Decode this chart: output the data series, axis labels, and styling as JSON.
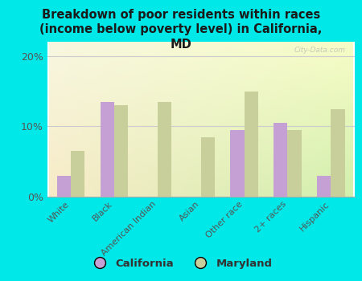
{
  "title": "Breakdown of poor residents within races\n(income below poverty level) in California,\nMD",
  "categories": [
    "White",
    "Black",
    "American Indian",
    "Asian",
    "Other race",
    "2+ races",
    "Hispanic"
  ],
  "california": [
    3.0,
    13.5,
    0.0,
    0.0,
    9.5,
    10.5,
    3.0
  ],
  "maryland": [
    6.5,
    13.0,
    13.5,
    8.5,
    15.0,
    9.5,
    12.5
  ],
  "california_color": "#c4a0d4",
  "maryland_color": "#c8cf9a",
  "background_color": "#00e8e8",
  "title_color": "#1a1a1a",
  "yticks": [
    0,
    10,
    20
  ],
  "ylim": [
    0,
    22
  ],
  "bar_width": 0.32,
  "watermark": "City-Data.com",
  "legend_california": "California",
  "legend_maryland": "Maryland",
  "grid_color": "#cccccc",
  "tick_color": "#555555"
}
